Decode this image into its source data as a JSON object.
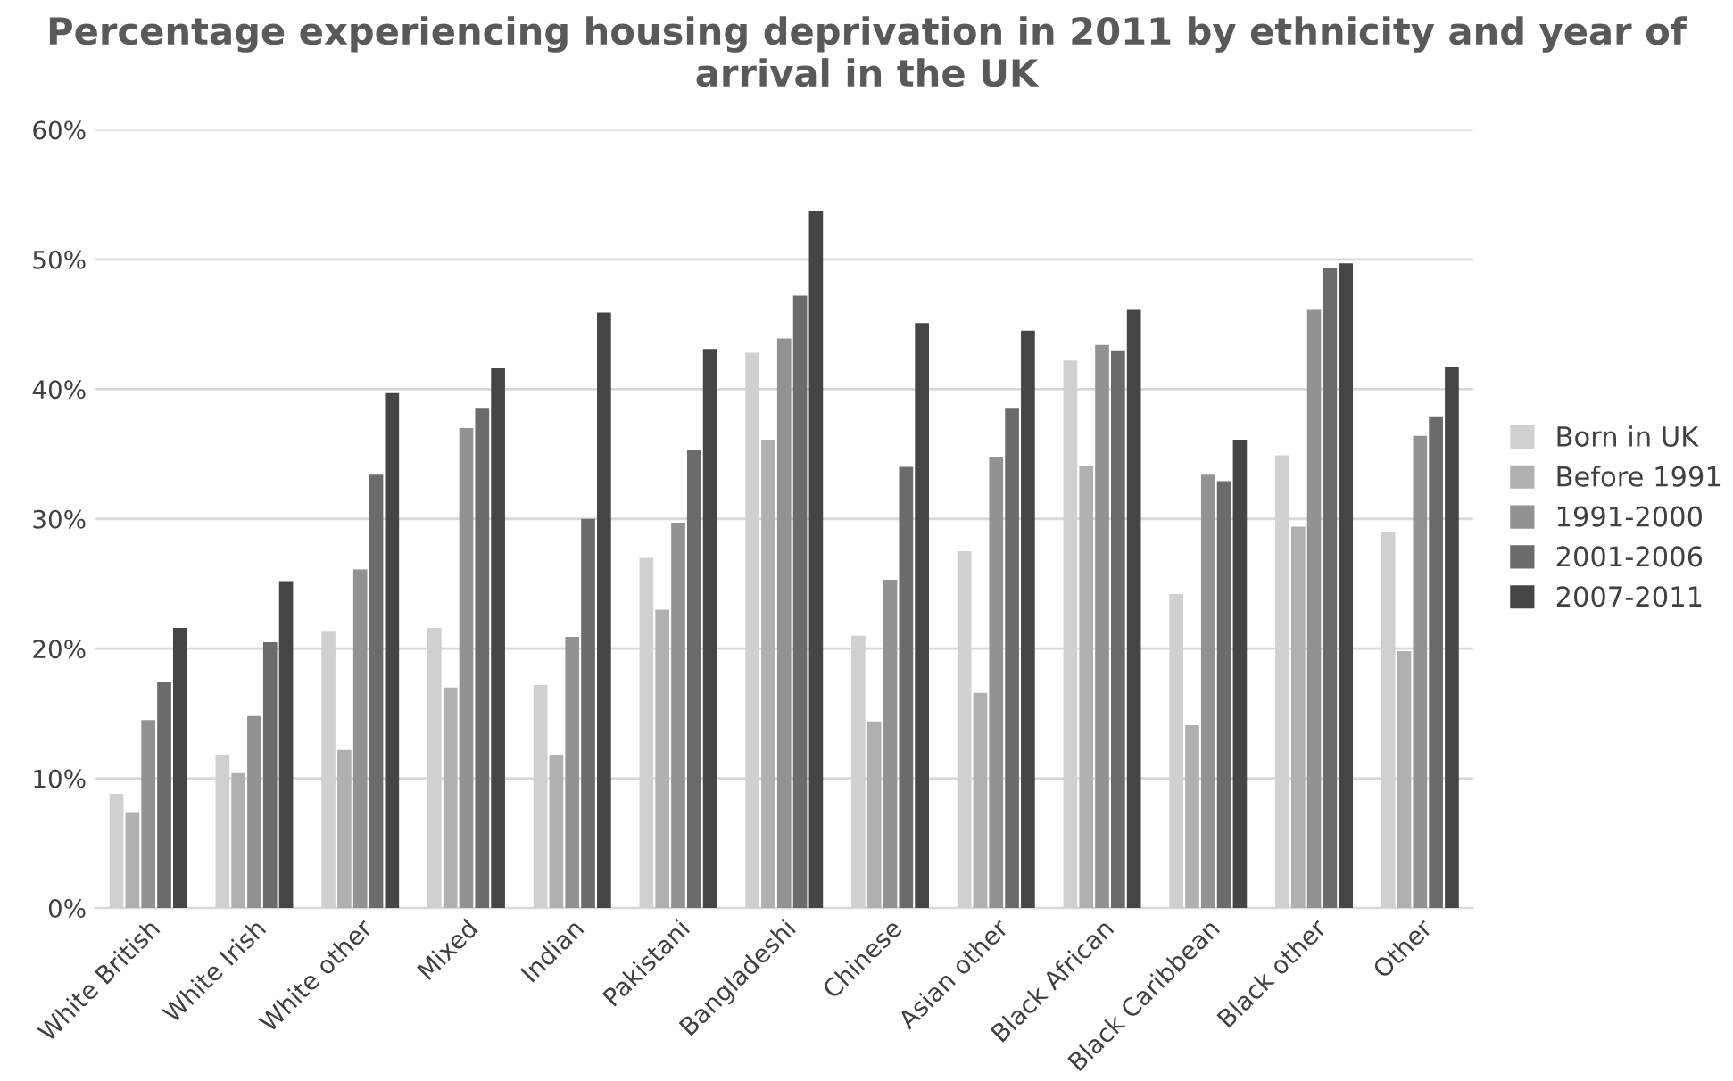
{
  "chart_data": {
    "type": "bar",
    "title": "Percentage experiencing housing deprivation in 2011 by ethnicity and year of arrival in the UK",
    "categories": [
      "White British",
      "White Irish",
      "White other",
      "Mixed",
      "Indian",
      "Pakistani",
      "Bangladeshi",
      "Chinese",
      "Asian other",
      "Black African",
      "Black Caribbean",
      "Black other",
      "Other"
    ],
    "series": [
      {
        "name": "Born in UK",
        "color": "#d0d0d0",
        "values": [
          8.8,
          11.8,
          21.3,
          21.6,
          17.2,
          27.0,
          42.8,
          21.0,
          27.5,
          42.2,
          24.2,
          34.9,
          29.0
        ]
      },
      {
        "name": "Before 1991",
        "color": "#b0b0b0",
        "values": [
          7.4,
          10.4,
          12.2,
          17.0,
          11.8,
          23.0,
          36.1,
          14.4,
          16.6,
          34.1,
          14.1,
          29.4,
          19.8
        ]
      },
      {
        "name": "1991-2000",
        "color": "#929292",
        "values": [
          14.5,
          14.8,
          26.1,
          37.0,
          20.9,
          29.7,
          43.9,
          25.3,
          34.8,
          43.4,
          33.4,
          46.1,
          36.4
        ]
      },
      {
        "name": "2001-2006",
        "color": "#6b6b6b",
        "values": [
          17.4,
          20.5,
          33.4,
          38.5,
          30.0,
          35.3,
          47.2,
          34.0,
          38.5,
          43.0,
          32.9,
          49.3,
          37.9
        ]
      },
      {
        "name": "2007-2011",
        "color": "#454545",
        "values": [
          21.6,
          25.2,
          39.7,
          41.6,
          45.9,
          43.1,
          53.7,
          45.1,
          44.5,
          46.1,
          36.1,
          49.7,
          41.7
        ]
      }
    ],
    "ylim": [
      0,
      60
    ],
    "yticks": [
      {
        "value": 0,
        "label": "0%"
      },
      {
        "value": 10,
        "label": "10%"
      },
      {
        "value": 20,
        "label": "20%"
      },
      {
        "value": 30,
        "label": "30%"
      },
      {
        "value": 40,
        "label": "40%"
      },
      {
        "value": 50,
        "label": "50%"
      },
      {
        "value": 60,
        "label": "60%"
      }
    ],
    "grid": "y",
    "legend": "right"
  }
}
